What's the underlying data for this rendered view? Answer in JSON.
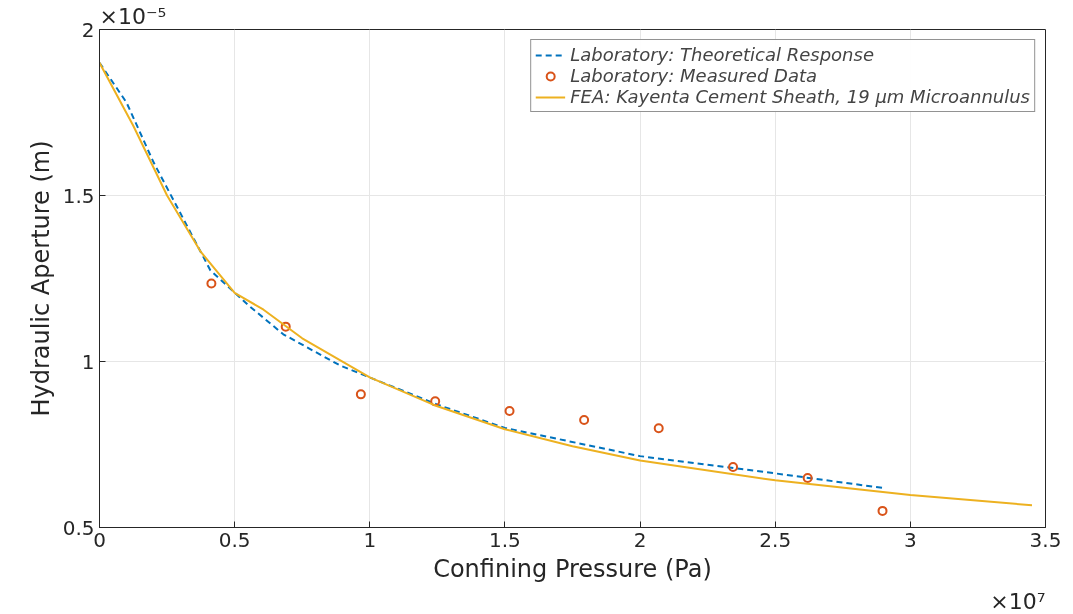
{
  "chart_data": {
    "type": "line",
    "xlabel": "Confining Pressure (Pa)",
    "ylabel": "Hydraulic Aperture (m)",
    "annotations": [
      "×10⁻⁵",
      "×10⁷"
    ],
    "xlim": [
      0,
      3.5
    ],
    "ylim": [
      0.5,
      2
    ],
    "xticks": [
      0,
      0.5,
      1,
      1.5,
      2,
      2.5,
      3,
      3.5
    ],
    "yticks": [
      0.5,
      1,
      1.5,
      2
    ],
    "grid": true,
    "legend": "top right",
    "series": [
      {
        "name": "Laboratory: Theoretical Response",
        "type": "line",
        "line_style": "dashed",
        "color": "#0072bd",
        "x": [
          0,
          0.1,
          0.2,
          0.31,
          0.41,
          0.55,
          0.68,
          0.89,
          1,
          1.25,
          1.5,
          2,
          2.5,
          2.9
        ],
        "values": [
          1.9,
          1.78,
          1.6,
          1.43,
          1.275,
          1.17,
          1.082,
          0.988,
          0.952,
          0.87,
          0.8,
          0.715,
          0.663,
          0.619
        ]
      },
      {
        "name": "Laboratory: Measured Data",
        "type": "scatter",
        "marker": "circle",
        "color": "#d95319",
        "x": [
          0.414,
          0.689,
          0.967,
          1.242,
          1.517,
          1.793,
          2.069,
          2.344,
          2.62,
          2.897
        ],
        "values": [
          1.235,
          1.105,
          0.901,
          0.88,
          0.851,
          0.824,
          0.799,
          0.682,
          0.649,
          0.55
        ]
      },
      {
        "name": "FEA: Kayenta Cement Sheath, 19 μm Microannulus",
        "type": "line",
        "line_style": "solid",
        "color": "#edb120",
        "x": [
          0,
          0.125,
          0.25,
          0.375,
          0.5,
          0.607,
          0.75,
          1,
          1.25,
          1.5,
          1.75,
          2,
          2.5,
          3,
          3.45
        ],
        "values": [
          1.9,
          1.71,
          1.5,
          1.33,
          1.207,
          1.156,
          1.07,
          0.952,
          0.865,
          0.796,
          0.745,
          0.702,
          0.642,
          0.598,
          0.567
        ]
      }
    ]
  }
}
